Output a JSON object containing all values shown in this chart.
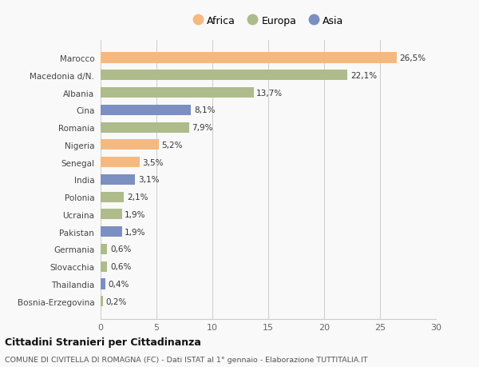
{
  "countries": [
    "Marocco",
    "Macedonia d/N.",
    "Albania",
    "Cina",
    "Romania",
    "Nigeria",
    "Senegal",
    "India",
    "Polonia",
    "Ucraina",
    "Pakistan",
    "Germania",
    "Slovacchia",
    "Thailandia",
    "Bosnia-Erzegovina"
  ],
  "values": [
    26.5,
    22.1,
    13.7,
    8.1,
    7.9,
    5.2,
    3.5,
    3.1,
    2.1,
    1.9,
    1.9,
    0.6,
    0.6,
    0.4,
    0.2
  ],
  "labels": [
    "26,5%",
    "22,1%",
    "13,7%",
    "8,1%",
    "7,9%",
    "5,2%",
    "3,5%",
    "3,1%",
    "2,1%",
    "1,9%",
    "1,9%",
    "0,6%",
    "0,6%",
    "0,4%",
    "0,2%"
  ],
  "continents": [
    "Africa",
    "Europa",
    "Europa",
    "Asia",
    "Europa",
    "Africa",
    "Africa",
    "Asia",
    "Europa",
    "Europa",
    "Asia",
    "Europa",
    "Europa",
    "Asia",
    "Europa"
  ],
  "colors": {
    "Africa": "#F5B97F",
    "Europa": "#AEBB8A",
    "Asia": "#7B8FC0"
  },
  "xlim": [
    0,
    30
  ],
  "xticks": [
    0,
    5,
    10,
    15,
    20,
    25,
    30
  ],
  "title": "Cittadini Stranieri per Cittadinanza",
  "subtitle": "COMUNE DI CIVITELLA DI ROMAGNA (FC) - Dati ISTAT al 1° gennaio - Elaborazione TUTTITALIA.IT",
  "background_color": "#f9f9f9",
  "grid_color": "#cccccc",
  "bar_height": 0.6,
  "label_fontsize": 7.5,
  "ytick_fontsize": 7.5,
  "xtick_fontsize": 8,
  "title_fontsize": 9,
  "subtitle_fontsize": 6.8,
  "legend_fontsize": 9
}
